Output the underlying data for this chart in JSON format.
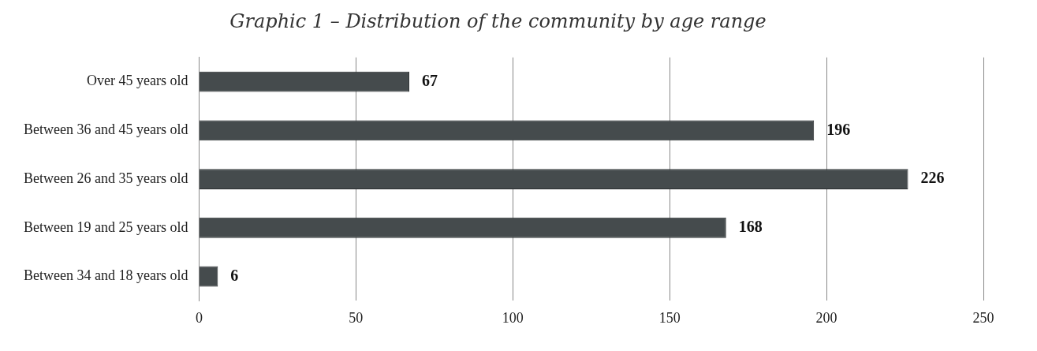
{
  "chart_data": {
    "type": "bar",
    "orientation": "horizontal",
    "title": "Graphic 1 – Distribution of the community by age range",
    "categories": [
      "Over 45 years old",
      "Between 36 and 45 years old",
      "Between 26 and 35 years old",
      "Between 19 and 25 years old",
      "Between 34 and 18 years old"
    ],
    "values": [
      67,
      196,
      226,
      168,
      6
    ],
    "color": "#454b4d",
    "xlim": [
      0,
      250
    ],
    "xticks": [
      0,
      50,
      100,
      150,
      200,
      250
    ],
    "grid": "x",
    "data_labels": true,
    "legend": false
  }
}
